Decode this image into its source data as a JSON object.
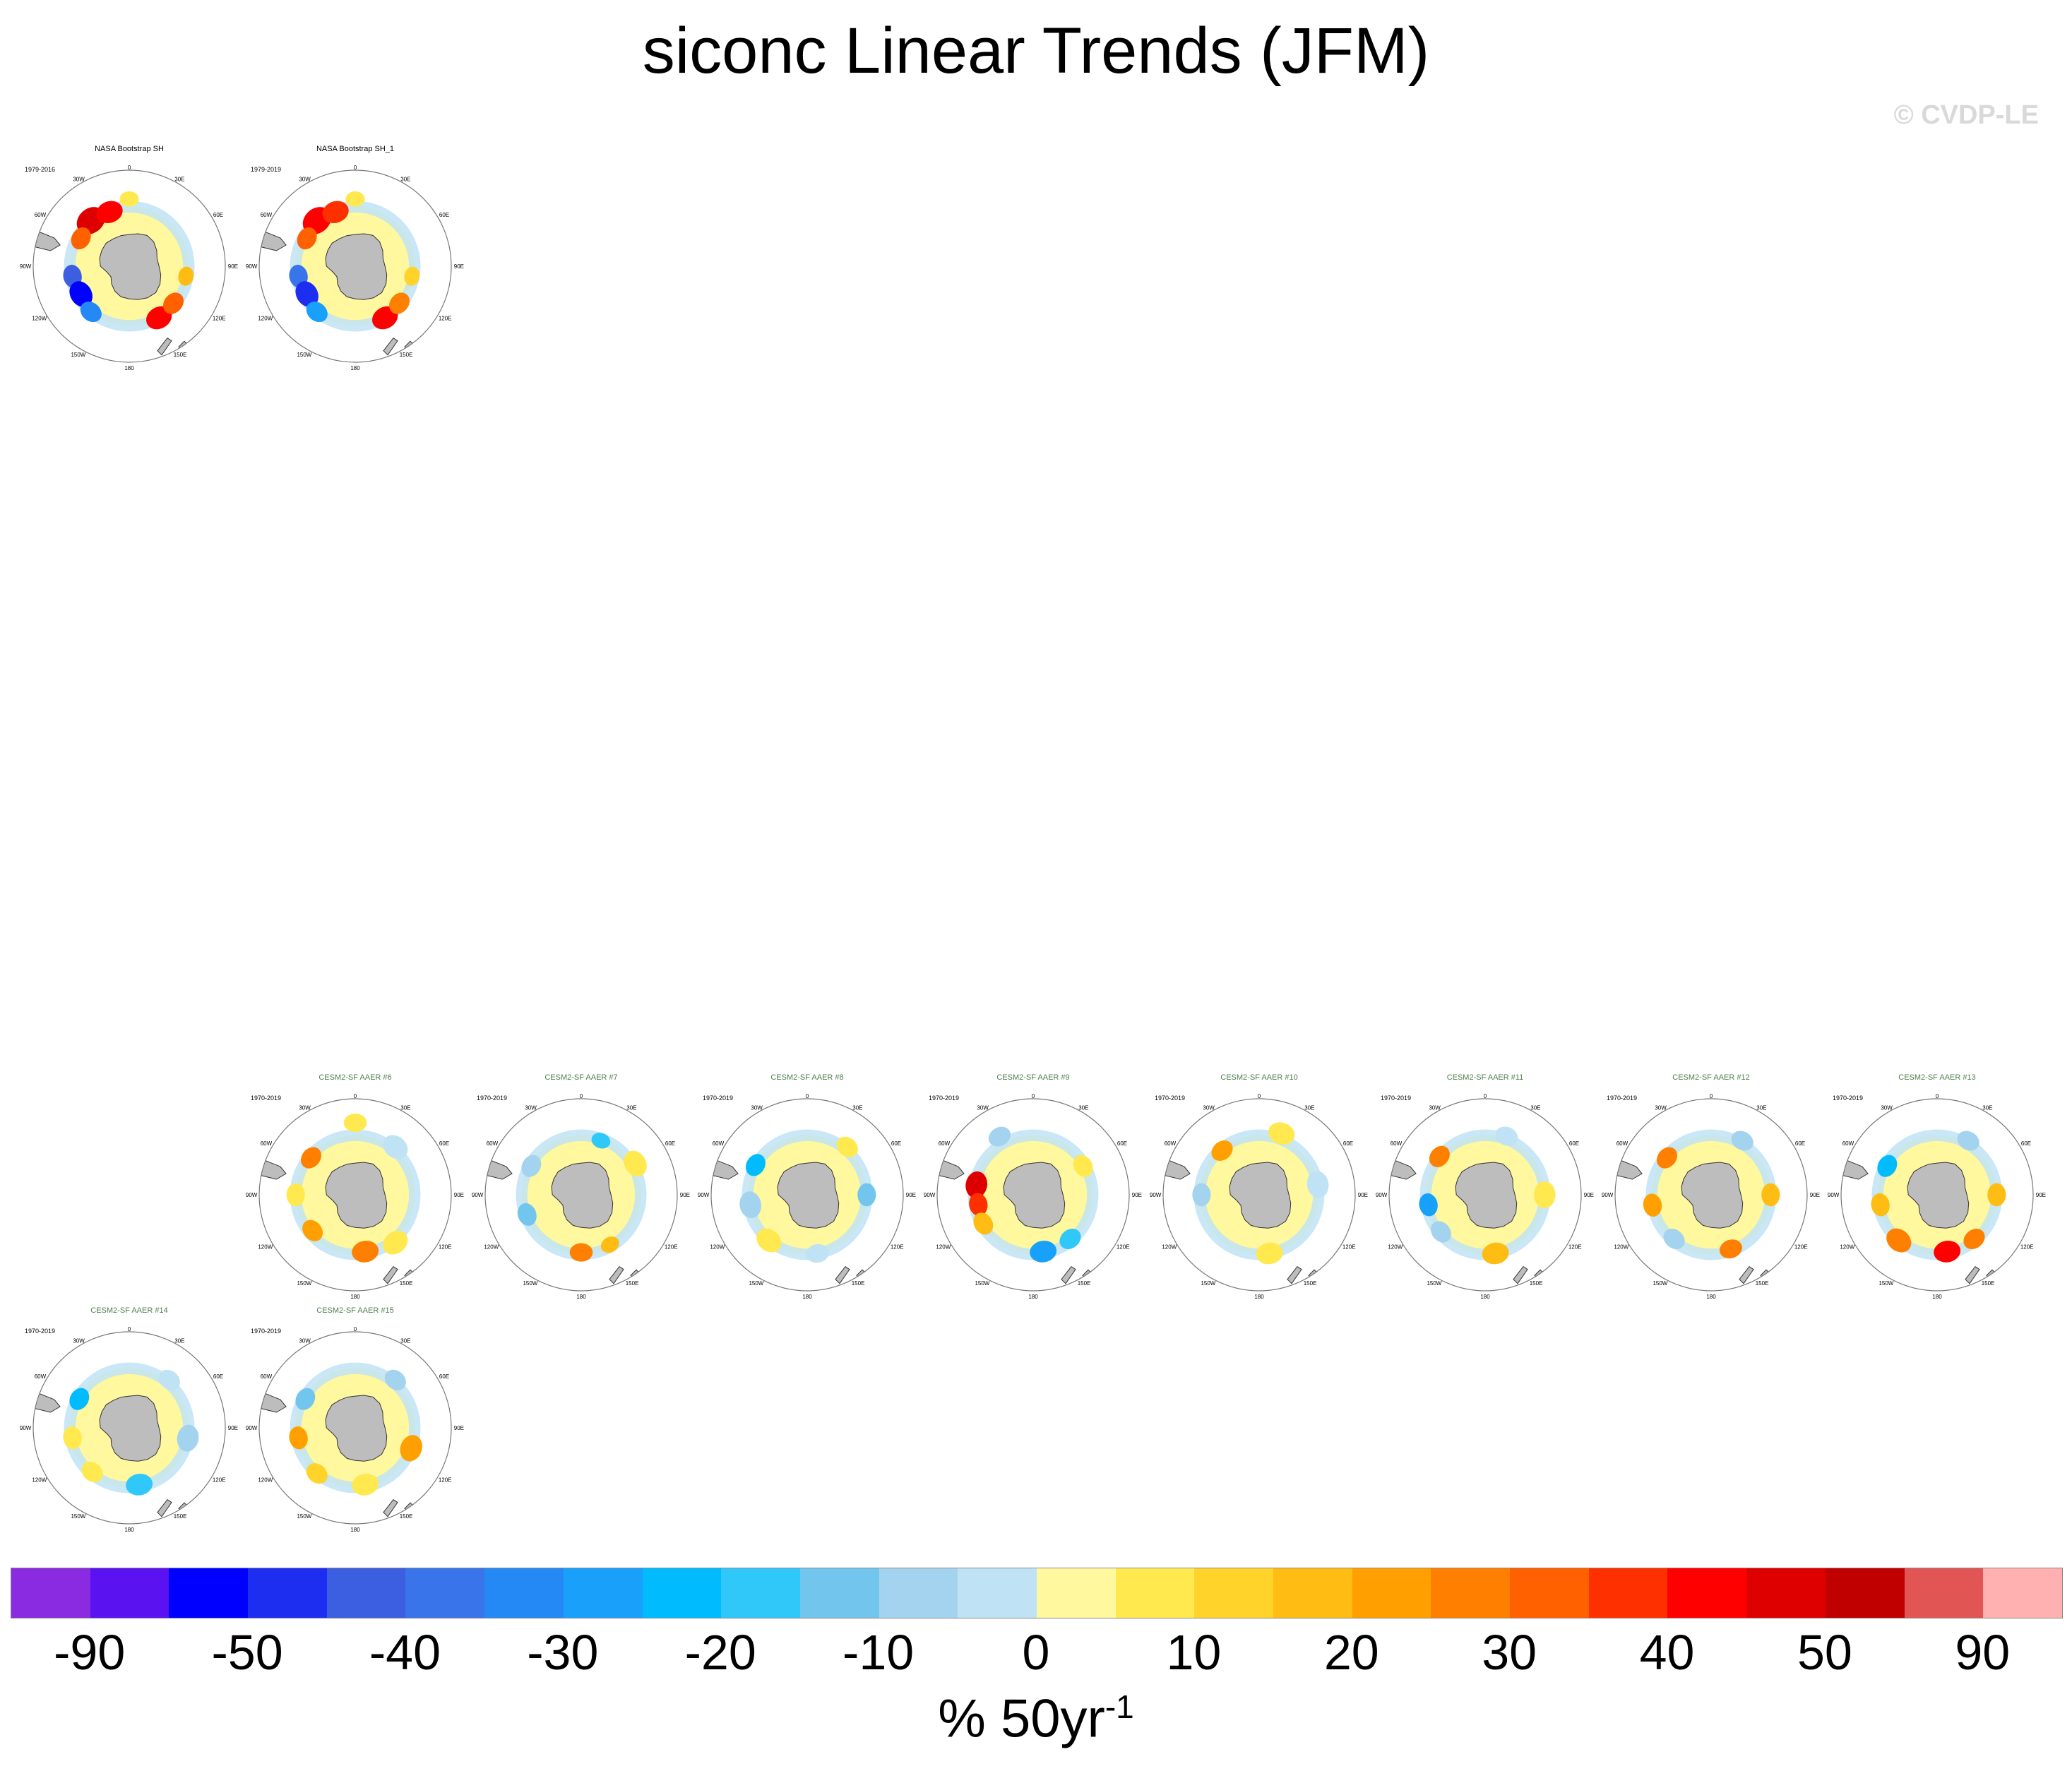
{
  "page": {
    "title": "siconc Linear Trends (JFM)",
    "copyright": "© CVDP-LE"
  },
  "map_labels": {
    "top": "0",
    "bottom": "180",
    "left": "90W",
    "right": "90E",
    "upper_left": "30W",
    "upper_right": "30E",
    "mid_upper_left": "60W",
    "mid_upper_right": "60E",
    "mid_lower_left": "120W",
    "mid_lower_right": "120E",
    "lower_left": "150W",
    "lower_right": "150E"
  },
  "chart_data": {
    "type": "heatmap",
    "projection": "south polar stereographic",
    "variable": "siconc",
    "season": "JFM",
    "panels": [
      {
        "title": "NASA Bootstrap SH",
        "years": "1979-2016",
        "kind": "observation",
        "pattern": "obsA"
      },
      {
        "title": "NASA Bootstrap SH_1",
        "years": "1979-2019",
        "kind": "observation",
        "pattern": "obsB"
      },
      {
        "title": "CESM2-SF AAER #6",
        "years": "1970-2019",
        "kind": "model",
        "pattern": "m6"
      },
      {
        "title": "CESM2-SF AAER #7",
        "years": "1970-2019",
        "kind": "model",
        "pattern": "m7"
      },
      {
        "title": "CESM2-SF AAER #8",
        "years": "1970-2019",
        "kind": "model",
        "pattern": "m8"
      },
      {
        "title": "CESM2-SF AAER #9",
        "years": "1970-2019",
        "kind": "model",
        "pattern": "m9"
      },
      {
        "title": "CESM2-SF AAER #10",
        "years": "1970-2019",
        "kind": "model",
        "pattern": "m10"
      },
      {
        "title": "CESM2-SF AAER #11",
        "years": "1970-2019",
        "kind": "model",
        "pattern": "m11"
      },
      {
        "title": "CESM2-SF AAER #12",
        "years": "1970-2019",
        "kind": "model",
        "pattern": "m12"
      },
      {
        "title": "CESM2-SF AAER #13",
        "years": "1970-2019",
        "kind": "model",
        "pattern": "m13"
      },
      {
        "title": "CESM2-SF AAER #14",
        "years": "1970-2019",
        "kind": "model",
        "pattern": "m14"
      },
      {
        "title": "CESM2-SF AAER #15",
        "years": "1970-2019",
        "kind": "model",
        "pattern": "m15"
      }
    ],
    "colorbar": {
      "colors": [
        "#8a2be2",
        "#5a12f0",
        "#0000ff",
        "#1e2ef0",
        "#3c5ee0",
        "#3a74ea",
        "#2589f5",
        "#18a0fb",
        "#00bcff",
        "#30c8f8",
        "#72c6ee",
        "#a3d3ee",
        "#bfe3f4",
        "#fff89e",
        "#ffe94f",
        "#ffd32a",
        "#ffbc12",
        "#ffa000",
        "#ff8000",
        "#ff6000",
        "#ff3000",
        "#ff0000",
        "#de0000",
        "#c00000",
        "#e25555",
        "#ffb0b0"
      ],
      "tick_labels": [
        "-90",
        "-50",
        "-40",
        "-30",
        "-20",
        "-10",
        "0",
        "10",
        "20",
        "30",
        "40",
        "50",
        "90"
      ],
      "units_base": "% 50yr",
      "units_exp": "-1"
    }
  }
}
